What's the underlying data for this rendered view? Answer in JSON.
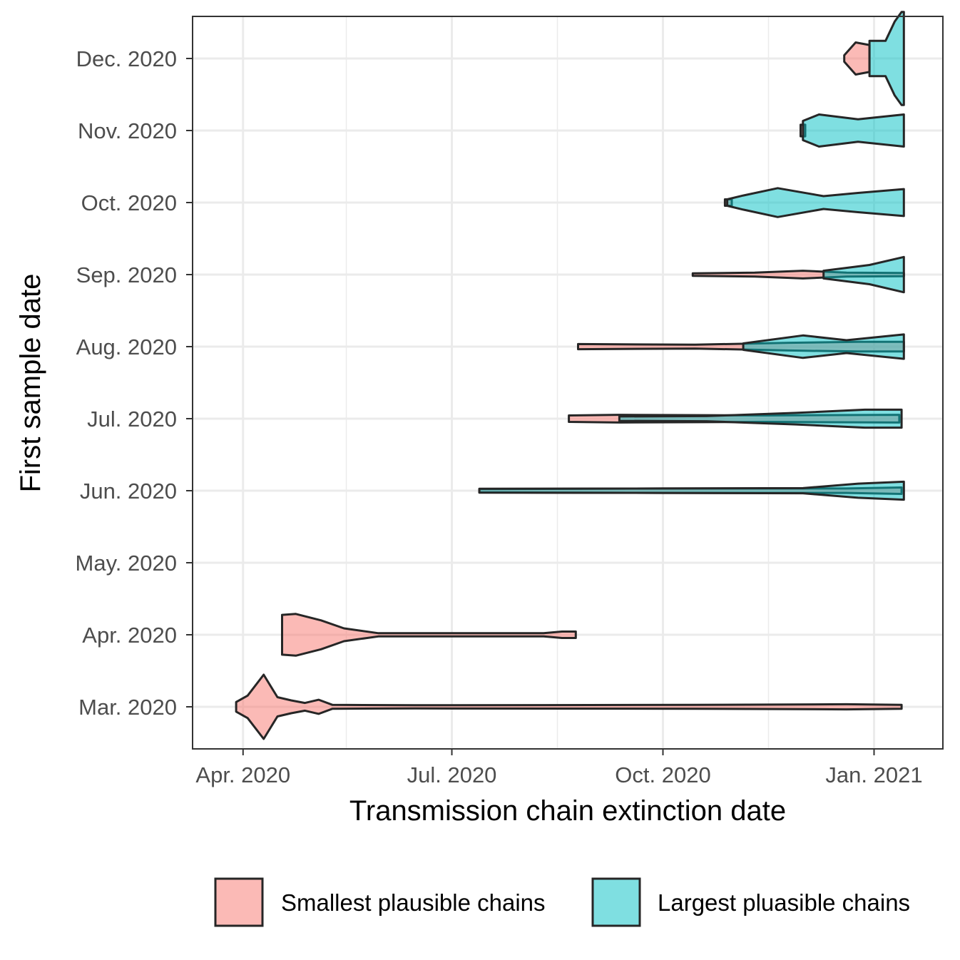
{
  "chart_data": {
    "type": "violin",
    "xlabel": "Transmission chain extinction date",
    "ylabel": "First sample date",
    "x_axis": {
      "type": "date",
      "range": [
        "2020-03-10",
        "2021-01-31"
      ],
      "ticks": [
        {
          "value": "2020-04-01",
          "label": "Apr. 2020"
        },
        {
          "value": "2020-07-01",
          "label": "Jul. 2020"
        },
        {
          "value": "2020-10-01",
          "label": "Oct. 2020"
        },
        {
          "value": "2021-01-01",
          "label": "Jan. 2021"
        }
      ]
    },
    "categories": [
      "Mar. 2020",
      "Apr. 2020",
      "May. 2020",
      "Jun. 2020",
      "Jul. 2020",
      "Aug. 2020",
      "Sep. 2020",
      "Oct. 2020",
      "Nov. 2020",
      "Dec. 2020"
    ],
    "grid": true,
    "legend_position": "bottom",
    "series": [
      {
        "name": "Smallest plausible chains",
        "color": "#F8766D",
        "violins": [
          {
            "category": "Mar. 2020",
            "profile": [
              [
                "2020-03-29",
                0.15
              ],
              [
                "2020-04-03",
                0.35
              ],
              [
                "2020-04-10",
                1.0
              ],
              [
                "2020-04-16",
                0.3
              ],
              [
                "2020-04-22",
                0.2
              ],
              [
                "2020-04-28",
                0.12
              ],
              [
                "2020-05-04",
                0.22
              ],
              [
                "2020-05-10",
                0.06
              ],
              [
                "2020-06-15",
                0.05
              ],
              [
                "2020-10-15",
                0.06
              ],
              [
                "2020-12-20",
                0.08
              ],
              [
                "2021-01-13",
                0.06
              ]
            ]
          },
          {
            "category": "Apr. 2020",
            "profile": [
              [
                "2020-04-18",
                0.62
              ],
              [
                "2020-04-24",
                0.65
              ],
              [
                "2020-05-05",
                0.45
              ],
              [
                "2020-05-15",
                0.2
              ],
              [
                "2020-05-30",
                0.05
              ],
              [
                "2020-08-10",
                0.05
              ],
              [
                "2020-08-18",
                0.1
              ],
              [
                "2020-08-24",
                0.1
              ]
            ]
          },
          {
            "category": "Jun. 2020",
            "profile": [
              [
                "2020-07-13",
                0.05
              ],
              [
                "2020-10-01",
                0.07
              ],
              [
                "2020-12-20",
                0.07
              ],
              [
                "2021-01-13",
                0.1
              ]
            ]
          },
          {
            "category": "Jul. 2020",
            "profile": [
              [
                "2020-08-21",
                0.1
              ],
              [
                "2020-09-12",
                0.12
              ],
              [
                "2020-11-15",
                0.1
              ],
              [
                "2021-01-12",
                0.12
              ]
            ]
          },
          {
            "category": "Aug. 2020",
            "profile": [
              [
                "2020-08-25",
                0.08
              ],
              [
                "2020-10-15",
                0.06
              ],
              [
                "2020-11-25",
                0.12
              ],
              [
                "2020-12-25",
                0.15
              ],
              [
                "2021-01-14",
                0.15
              ]
            ]
          },
          {
            "category": "Sep. 2020",
            "profile": [
              [
                "2020-10-14",
                0.04
              ],
              [
                "2020-11-10",
                0.06
              ],
              [
                "2020-12-01",
                0.12
              ],
              [
                "2020-12-20",
                0.06
              ],
              [
                "2021-01-14",
                0.05
              ]
            ]
          },
          {
            "category": "Oct. 2020",
            "profile": [
              [
                "2020-10-28",
                0.1
              ],
              [
                "2020-10-31",
                0.1
              ]
            ]
          },
          {
            "category": "Nov. 2020",
            "profile": [
              [
                "2020-11-30",
                0.18
              ],
              [
                "2020-12-02",
                0.18
              ]
            ]
          },
          {
            "category": "Dec. 2020",
            "profile": [
              [
                "2020-12-19",
                0.1
              ],
              [
                "2020-12-24",
                0.5
              ],
              [
                "2020-12-30",
                0.42
              ]
            ]
          }
        ]
      },
      {
        "name": "Largest pluasible chains",
        "color": "#00BFC4",
        "violins": [
          {
            "category": "Jun. 2020",
            "profile": [
              [
                "2020-07-13",
                0.06
              ],
              [
                "2020-10-01",
                0.07
              ],
              [
                "2020-12-01",
                0.08
              ],
              [
                "2020-12-25",
                0.22
              ],
              [
                "2021-01-14",
                0.28
              ]
            ]
          },
          {
            "category": "Jul. 2020",
            "profile": [
              [
                "2020-09-12",
                0.07
              ],
              [
                "2020-10-20",
                0.08
              ],
              [
                "2020-11-28",
                0.18
              ],
              [
                "2020-12-28",
                0.28
              ],
              [
                "2021-01-13",
                0.28
              ]
            ]
          },
          {
            "category": "Aug. 2020",
            "profile": [
              [
                "2020-11-05",
                0.1
              ],
              [
                "2020-12-01",
                0.35
              ],
              [
                "2020-12-20",
                0.2
              ],
              [
                "2021-01-14",
                0.38
              ]
            ]
          },
          {
            "category": "Sep. 2020",
            "profile": [
              [
                "2020-12-10",
                0.12
              ],
              [
                "2020-12-30",
                0.3
              ],
              [
                "2021-01-14",
                0.55
              ]
            ]
          },
          {
            "category": "Oct. 2020",
            "profile": [
              [
                "2020-10-29",
                0.1
              ],
              [
                "2020-11-05",
                0.22
              ],
              [
                "2020-11-20",
                0.45
              ],
              [
                "2020-12-10",
                0.2
              ],
              [
                "2020-12-25",
                0.3
              ],
              [
                "2021-01-14",
                0.42
              ]
            ]
          },
          {
            "category": "Nov. 2020",
            "profile": [
              [
                "2020-12-01",
                0.3
              ],
              [
                "2020-12-08",
                0.5
              ],
              [
                "2020-12-25",
                0.35
              ],
              [
                "2021-01-14",
                0.5
              ]
            ]
          },
          {
            "category": "Dec. 2020",
            "profile": [
              [
                "2020-12-30",
                0.55
              ],
              [
                "2021-01-06",
                0.55
              ],
              [
                "2021-01-10",
                1.15
              ],
              [
                "2021-01-13",
                1.45
              ],
              [
                "2021-01-14",
                1.45
              ]
            ]
          }
        ]
      }
    ]
  }
}
